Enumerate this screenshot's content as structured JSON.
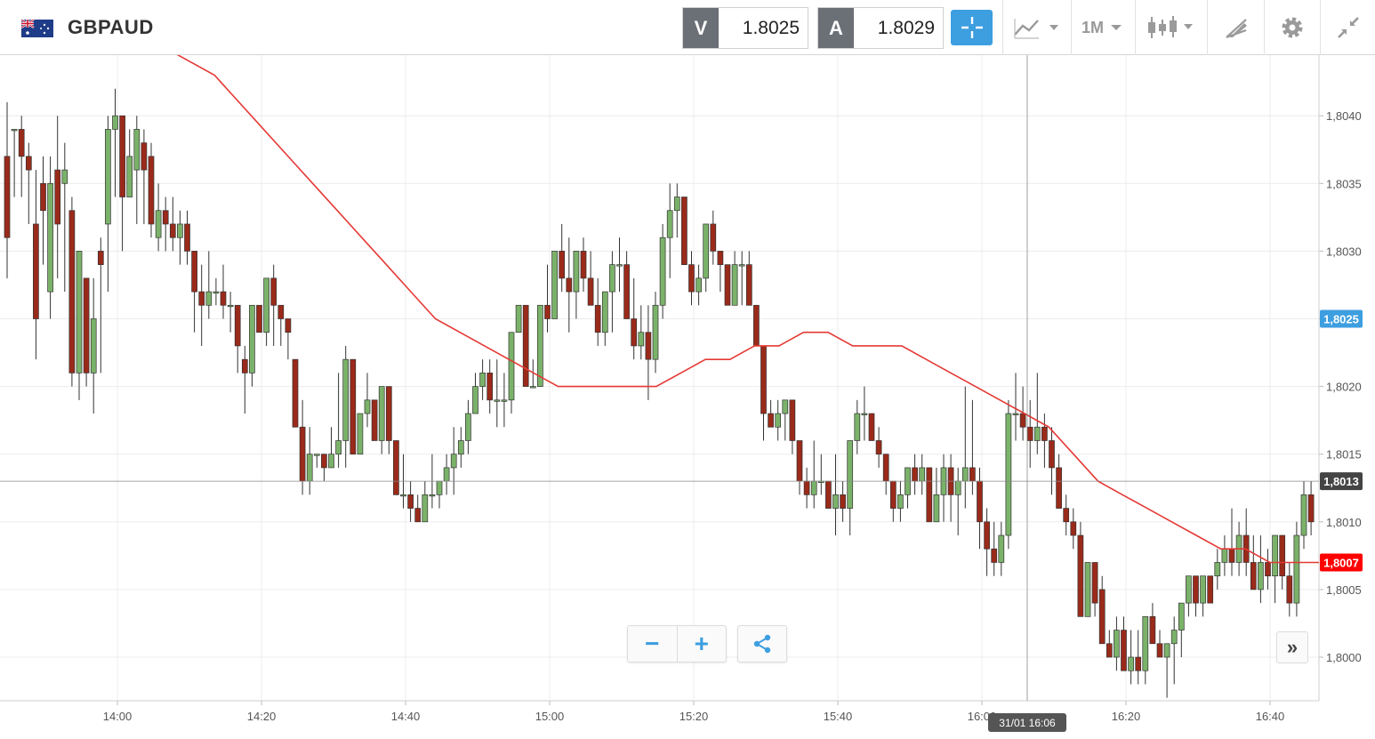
{
  "header": {
    "symbol": "GBPAUD",
    "flag_icon": "gb-au-flag-icon",
    "sell": {
      "tag": "V",
      "value": "1.8025"
    },
    "buy": {
      "tag": "A",
      "value": "1.8029"
    },
    "period": "1M",
    "tools": [
      "crosshair-icon",
      "chart-type-icon",
      "period-select",
      "candles-icon",
      "draw-icon",
      "gear-icon",
      "collapse-icon"
    ]
  },
  "colors": {
    "up": "#7bb26a",
    "down": "#9a2a1a",
    "ma": "#e53935",
    "accent": "#3d9ee0",
    "sell_label": "#ff0000",
    "cursor_label": "#555555"
  },
  "chart_data": {
    "type": "candlestick",
    "ylim": [
      1.7997,
      1.8044
    ],
    "yticks": [
      "1,8000",
      "1,8005",
      "1,8010",
      "1,8015",
      "1,8020",
      "1,8025",
      "1,8030",
      "1,8035",
      "1,8040"
    ],
    "xticks": [
      "14:00",
      "14:20",
      "14:40",
      "15:00",
      "15:20",
      "15:40",
      "16:00",
      "16:20",
      "16:40"
    ],
    "series_note": "1-minute OHLC candles with moving average overlay",
    "candles": [
      [
        1.8037,
        1.8041,
        1.8028,
        1.8031
      ],
      [
        1.8039,
        1.8039,
        1.8034,
        1.8039
      ],
      [
        1.8039,
        1.804,
        1.8034,
        1.8037
      ],
      [
        1.8037,
        1.8038,
        1.8032,
        1.8036
      ],
      [
        1.8032,
        1.8036,
        1.8022,
        1.8025
      ],
      [
        1.8035,
        1.8037,
        1.8029,
        1.8033
      ],
      [
        1.8027,
        1.8037,
        1.8025,
        1.8035
      ],
      [
        1.8036,
        1.804,
        1.8028,
        1.8032
      ],
      [
        1.8035,
        1.8038,
        1.8027,
        1.8036
      ],
      [
        1.8033,
        1.8034,
        1.802,
        1.8021
      ],
      [
        1.8021,
        1.803,
        1.8019,
        1.803
      ],
      [
        1.8028,
        1.8028,
        1.802,
        1.8021
      ],
      [
        1.8021,
        1.8028,
        1.8018,
        1.8025
      ],
      [
        1.803,
        1.8031,
        1.8021,
        1.8029
      ],
      [
        1.8032,
        1.804,
        1.8027,
        1.8039
      ],
      [
        1.8039,
        1.8042,
        1.8034,
        1.804
      ],
      [
        1.804,
        1.804,
        1.803,
        1.8034
      ],
      [
        1.8034,
        1.8039,
        1.8034,
        1.8037
      ],
      [
        1.8036,
        1.804,
        1.8032,
        1.8039
      ],
      [
        1.8038,
        1.8039,
        1.8032,
        1.8036
      ],
      [
        1.8037,
        1.8038,
        1.8031,
        1.8032
      ],
      [
        1.8031,
        1.8035,
        1.803,
        1.8033
      ],
      [
        1.8033,
        1.8034,
        1.803,
        1.8032
      ],
      [
        1.8032,
        1.8034,
        1.803,
        1.8031
      ],
      [
        1.8031,
        1.8033,
        1.8029,
        1.8032
      ],
      [
        1.8032,
        1.8033,
        1.8029,
        1.803
      ],
      [
        1.803,
        1.803,
        1.8024,
        1.8027
      ],
      [
        1.8027,
        1.8029,
        1.8023,
        1.8026
      ],
      [
        1.8026,
        1.803,
        1.8025,
        1.8027
      ],
      [
        1.8027,
        1.8028,
        1.8026,
        1.8027
      ],
      [
        1.8027,
        1.8029,
        1.8025,
        1.8026
      ],
      [
        1.8026,
        1.8027,
        1.8024,
        1.8026
      ],
      [
        1.8026,
        1.8026,
        1.8021,
        1.8023
      ],
      [
        1.8022,
        1.8023,
        1.8018,
        1.8021
      ],
      [
        1.8021,
        1.8026,
        1.802,
        1.8026
      ],
      [
        1.8026,
        1.8026,
        1.8024,
        1.8024
      ],
      [
        1.8024,
        1.8028,
        1.8023,
        1.8028
      ],
      [
        1.8028,
        1.8029,
        1.8023,
        1.8026
      ],
      [
        1.8026,
        1.8026,
        1.8023,
        1.8025
      ],
      [
        1.8025,
        1.8025,
        1.8022,
        1.8024
      ]
    ],
    "candles_b": [
      [
        1.8022,
        1.8022,
        1.8017,
        1.8017
      ],
      [
        1.8017,
        1.8019,
        1.8012,
        1.8013
      ],
      [
        1.8013,
        1.8017,
        1.8012,
        1.8015
      ],
      [
        1.8015,
        1.8015,
        1.8014,
        1.8015
      ],
      [
        1.8015,
        1.8015,
        1.8013,
        1.8014
      ],
      [
        1.8014,
        1.8017,
        1.8014,
        1.8015
      ],
      [
        1.8015,
        1.8021,
        1.8014,
        1.8016
      ],
      [
        1.8016,
        1.8023,
        1.8014,
        1.8022
      ],
      [
        1.8022,
        1.8022,
        1.8015,
        1.8015
      ],
      [
        1.8015,
        1.8018,
        1.8015,
        1.8018
      ],
      [
        1.8018,
        1.8021,
        1.8017,
        1.8019
      ],
      [
        1.8019,
        1.8019,
        1.8016,
        1.8016
      ],
      [
        1.8016,
        1.802,
        1.8015,
        1.802
      ],
      [
        1.802,
        1.802,
        1.8015,
        1.8016
      ],
      [
        1.8016,
        1.8016,
        1.8012,
        1.8012
      ],
      [
        1.8012,
        1.8015,
        1.8011,
        1.8012
      ],
      [
        1.8012,
        1.8013,
        1.801,
        1.8011
      ],
      [
        1.8011,
        1.8012,
        1.801,
        1.801
      ],
      [
        1.801,
        1.8013,
        1.801,
        1.8012
      ],
      [
        1.8012,
        1.8015,
        1.8011,
        1.8012
      ],
      [
        1.8012,
        1.8013,
        1.8011,
        1.8013
      ],
      [
        1.8013,
        1.8015,
        1.8012,
        1.8014
      ],
      [
        1.8014,
        1.8017,
        1.8012,
        1.8015
      ],
      [
        1.8015,
        1.8017,
        1.8014,
        1.8016
      ],
      [
        1.8016,
        1.8019,
        1.8015,
        1.8018
      ],
      [
        1.8018,
        1.8021,
        1.8018,
        1.802
      ],
      [
        1.802,
        1.8022,
        1.8019,
        1.8021
      ],
      [
        1.8021,
        1.8022,
        1.8018,
        1.8019
      ],
      [
        1.8019,
        1.8022,
        1.8017,
        1.8019
      ],
      [
        1.8019,
        1.8021,
        1.8017,
        1.8019
      ],
      [
        1.8019,
        1.8024,
        1.8018,
        1.8024
      ],
      [
        1.8024,
        1.8026,
        1.8024,
        1.8026
      ],
      [
        1.8026,
        1.8026,
        1.802,
        1.802
      ],
      [
        1.802,
        1.8022,
        1.802,
        1.802
      ],
      [
        1.802,
        1.8026,
        1.802,
        1.8026
      ],
      [
        1.8026,
        1.8029,
        1.8024,
        1.8025
      ],
      [
        1.8025,
        1.803,
        1.8025,
        1.803
      ],
      [
        1.803,
        1.8032,
        1.8027,
        1.8028
      ],
      [
        1.8028,
        1.8031,
        1.8024,
        1.8027
      ],
      [
        1.8027,
        1.803,
        1.8025,
        1.803
      ]
    ],
    "candles_c": [
      [
        1.803,
        1.8031,
        1.8027,
        1.8028
      ],
      [
        1.8028,
        1.803,
        1.8026,
        1.8026
      ],
      [
        1.8026,
        1.8028,
        1.8023,
        1.8024
      ],
      [
        1.8024,
        1.8027,
        1.8023,
        1.8027
      ],
      [
        1.8027,
        1.803,
        1.8024,
        1.8029
      ],
      [
        1.8029,
        1.8031,
        1.8027,
        1.8029
      ],
      [
        1.8029,
        1.803,
        1.8025,
        1.8025
      ],
      [
        1.8025,
        1.8028,
        1.8022,
        1.8023
      ],
      [
        1.8023,
        1.8026,
        1.8022,
        1.8024
      ],
      [
        1.8024,
        1.8026,
        1.8019,
        1.8022
      ],
      [
        1.8022,
        1.8027,
        1.8021,
        1.8026
      ],
      [
        1.8026,
        1.8032,
        1.8025,
        1.8031
      ],
      [
        1.8031,
        1.8035,
        1.8028,
        1.8033
      ],
      [
        1.8033,
        1.8035,
        1.8031,
        1.8034
      ],
      [
        1.8034,
        1.8034,
        1.8029,
        1.8029
      ],
      [
        1.8029,
        1.803,
        1.8026,
        1.8027
      ],
      [
        1.8027,
        1.8029,
        1.8026,
        1.8028
      ],
      [
        1.8028,
        1.8032,
        1.8027,
        1.8032
      ],
      [
        1.8032,
        1.8033,
        1.8029,
        1.803
      ],
      [
        1.803,
        1.803,
        1.8027,
        1.8029
      ],
      [
        1.8029,
        1.8029,
        1.8026,
        1.8026
      ],
      [
        1.8026,
        1.803,
        1.8026,
        1.8029
      ],
      [
        1.8029,
        1.803,
        1.8026,
        1.8029
      ],
      [
        1.8029,
        1.803,
        1.8026,
        1.8026
      ],
      [
        1.8026,
        1.8026,
        1.8023,
        1.8023
      ],
      [
        1.8023,
        1.8023,
        1.8016,
        1.8018
      ],
      [
        1.8018,
        1.8019,
        1.8017,
        1.8017
      ],
      [
        1.8017,
        1.8019,
        1.8016,
        1.8018
      ],
      [
        1.8018,
        1.8019,
        1.8016,
        1.8019
      ],
      [
        1.8019,
        1.8019,
        1.8015,
        1.8016
      ],
      [
        1.8016,
        1.8016,
        1.8012,
        1.8013
      ],
      [
        1.8013,
        1.8014,
        1.8011,
        1.8012
      ],
      [
        1.8012,
        1.8016,
        1.8011,
        1.8013
      ],
      [
        1.8013,
        1.8015,
        1.8012,
        1.8013
      ],
      [
        1.8013,
        1.8013,
        1.8011,
        1.8011
      ],
      [
        1.8011,
        1.8015,
        1.8009,
        1.8012
      ],
      [
        1.8012,
        1.8013,
        1.801,
        1.8011
      ],
      [
        1.8011,
        1.8016,
        1.8009,
        1.8016
      ],
      [
        1.8016,
        1.8019,
        1.8015,
        1.8018
      ],
      [
        1.8018,
        1.802,
        1.8016,
        1.8018
      ]
    ],
    "candles_d": [
      [
        1.8018,
        1.8018,
        1.8016,
        1.8016
      ],
      [
        1.8016,
        1.8017,
        1.8014,
        1.8015
      ],
      [
        1.8015,
        1.8015,
        1.8012,
        1.8013
      ],
      [
        1.8013,
        1.8013,
        1.801,
        1.8011
      ],
      [
        1.8011,
        1.8013,
        1.801,
        1.8012
      ],
      [
        1.8012,
        1.8014,
        1.8011,
        1.8014
      ],
      [
        1.8014,
        1.8015,
        1.8012,
        1.8013
      ],
      [
        1.8013,
        1.8015,
        1.8012,
        1.8014
      ],
      [
        1.8014,
        1.8014,
        1.801,
        1.801
      ],
      [
        1.801,
        1.8014,
        1.801,
        1.8012
      ],
      [
        1.8012,
        1.8015,
        1.801,
        1.8014
      ],
      [
        1.8014,
        1.8015,
        1.801,
        1.8012
      ],
      [
        1.8012,
        1.8014,
        1.8009,
        1.8013
      ],
      [
        1.8013,
        1.802,
        1.8011,
        1.8014
      ],
      [
        1.8014,
        1.8019,
        1.8012,
        1.8013
      ],
      [
        1.8013,
        1.8014,
        1.8008,
        1.801
      ],
      [
        1.801,
        1.8011,
        1.8006,
        1.8008
      ],
      [
        1.8008,
        1.801,
        1.8006,
        1.8007
      ],
      [
        1.8007,
        1.801,
        1.8006,
        1.8009
      ],
      [
        1.8009,
        1.8019,
        1.8008,
        1.8018
      ],
      [
        1.8018,
        1.8021,
        1.8016,
        1.8018
      ],
      [
        1.8018,
        1.802,
        1.8016,
        1.8017
      ],
      [
        1.8017,
        1.8019,
        1.8014,
        1.8016
      ],
      [
        1.8016,
        1.8021,
        1.8015,
        1.8017
      ],
      [
        1.8017,
        1.8018,
        1.8014,
        1.8016
      ],
      [
        1.8016,
        1.8017,
        1.8012,
        1.8014
      ],
      [
        1.8014,
        1.8015,
        1.8011,
        1.8011
      ],
      [
        1.8011,
        1.8012,
        1.8009,
        1.801
      ],
      [
        1.801,
        1.8011,
        1.8008,
        1.8009
      ],
      [
        1.8009,
        1.801,
        1.8003,
        1.8003
      ],
      [
        1.8003,
        1.8007,
        1.8003,
        1.8007
      ],
      [
        1.8007,
        1.8007,
        1.8003,
        1.8004
      ],
      [
        1.8005,
        1.8006,
        1.8001,
        1.8001
      ],
      [
        1.8001,
        1.8002,
        1.8,
        1.8
      ],
      [
        1.8,
        1.8003,
        1.7999,
        1.8002
      ],
      [
        1.8002,
        1.8003,
        1.7999,
        1.7999
      ],
      [
        1.7999,
        1.8002,
        1.7998,
        1.8
      ],
      [
        1.8,
        1.8002,
        1.7998,
        1.7999
      ],
      [
        1.7999,
        1.8003,
        1.7998,
        1.8003
      ],
      [
        1.8003,
        1.8004,
        1.8001,
        1.8001
      ]
    ],
    "candles_e": [
      [
        1.8001,
        1.8002,
        1.8,
        1.8
      ],
      [
        1.8,
        1.8001,
        1.7997,
        1.8001
      ],
      [
        1.8001,
        1.8003,
        1.7998,
        1.8002
      ],
      [
        1.8002,
        1.8004,
        1.8,
        1.8004
      ],
      [
        1.8004,
        1.8006,
        1.8003,
        1.8006
      ],
      [
        1.8006,
        1.8006,
        1.8003,
        1.8004
      ],
      [
        1.8004,
        1.8006,
        1.8003,
        1.8006
      ],
      [
        1.8006,
        1.8006,
        1.8004,
        1.8004
      ],
      [
        1.8006,
        1.8008,
        1.8005,
        1.8007
      ],
      [
        1.8007,
        1.8009,
        1.8006,
        1.8008
      ],
      [
        1.8008,
        1.8011,
        1.8006,
        1.8007
      ],
      [
        1.8007,
        1.801,
        1.8006,
        1.8009
      ],
      [
        1.8009,
        1.8011,
        1.8006,
        1.8007
      ],
      [
        1.8007,
        1.8009,
        1.8005,
        1.8005
      ],
      [
        1.8005,
        1.8009,
        1.8004,
        1.8007
      ],
      [
        1.8007,
        1.8008,
        1.8005,
        1.8006
      ],
      [
        1.8006,
        1.8009,
        1.8004,
        1.8009
      ],
      [
        1.8009,
        1.8009,
        1.8005,
        1.8006
      ],
      [
        1.8006,
        1.8007,
        1.8003,
        1.8004
      ],
      [
        1.8004,
        1.801,
        1.8003,
        1.8009
      ],
      [
        1.8009,
        1.8013,
        1.8008,
        1.8012
      ],
      [
        1.8012,
        1.8013,
        1.8009,
        1.801
      ],
      [
        1.801,
        1.801,
        1.8005,
        1.8006
      ],
      [
        1.8006,
        1.8008,
        1.8004,
        1.8005
      ],
      [
        1.8005,
        1.8009,
        1.8003,
        1.8008
      ],
      [
        1.8008,
        1.8012,
        1.8006,
        1.8011
      ],
      [
        1.8011,
        1.8013,
        1.8009,
        1.8009
      ],
      [
        1.8009,
        1.8012,
        1.8007,
        1.8011
      ],
      [
        1.8011,
        1.8015,
        1.8009,
        1.8014
      ]
    ],
    "ma": [
      1.8045,
      1.8044,
      1.8043,
      1.8041,
      1.8039,
      1.8037,
      1.8035,
      1.8033,
      1.8031,
      1.8029,
      1.8027,
      1.8025,
      1.8024,
      1.8023,
      1.8022,
      1.8021,
      1.802,
      1.802,
      1.802,
      1.802,
      1.802,
      1.8021,
      1.8022,
      1.8022,
      1.8023,
      1.8023,
      1.8024,
      1.8024,
      1.8023,
      1.8023,
      1.8023,
      1.8022,
      1.8021,
      1.802,
      1.8019,
      1.8018,
      1.8017,
      1.8015,
      1.8013,
      1.8012,
      1.8011,
      1.801,
      1.8009,
      1.8008,
      1.8008,
      1.8007,
      1.8007,
      1.8007
    ],
    "price_labels": {
      "sell_quote": "1,8025",
      "cursor": "1,8013",
      "ma_last": "1,8007"
    },
    "cursor_time": "31/01 16:06"
  },
  "controls": {
    "zoom_out": "−",
    "zoom_in": "+",
    "forward": "»"
  }
}
